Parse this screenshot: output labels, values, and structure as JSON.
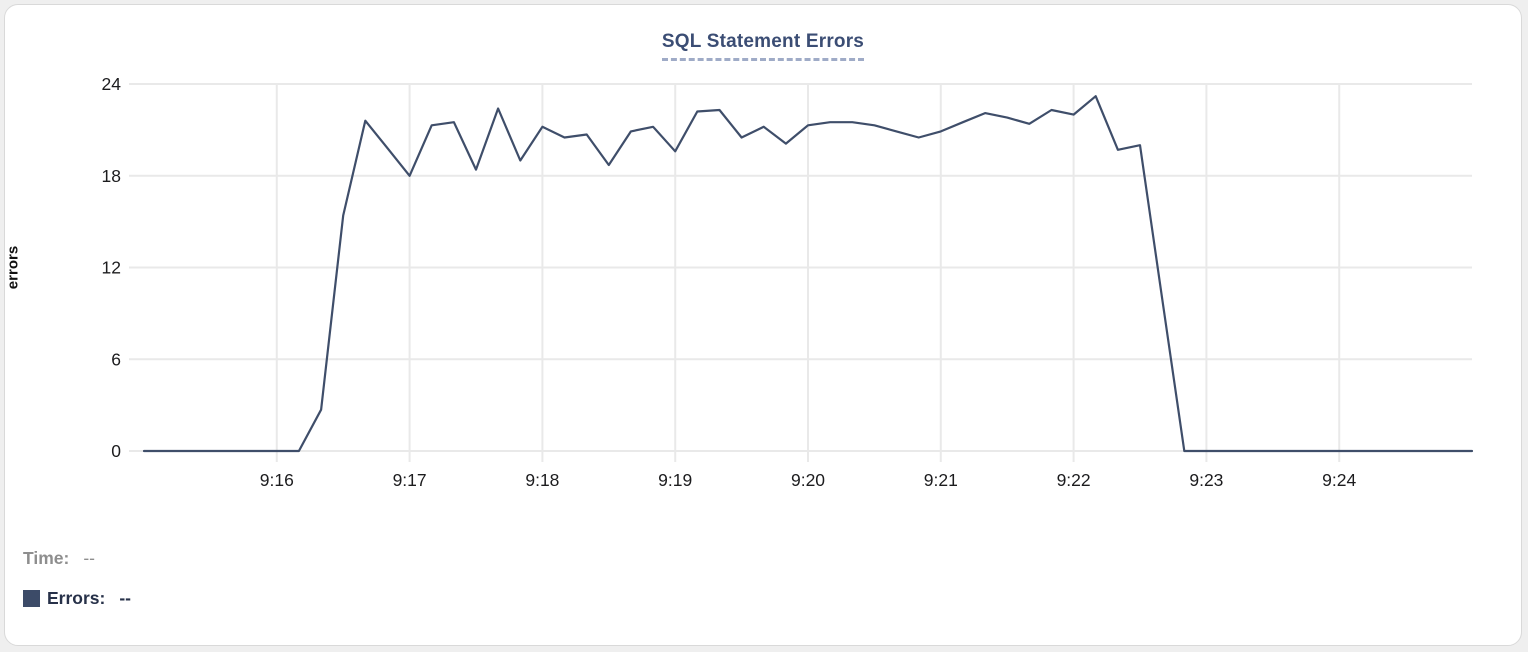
{
  "chart": {
    "title": "SQL Statement Errors",
    "y_axis_label": "errors"
  },
  "tooltip": {
    "time_label": "Time:",
    "time_value": "--",
    "errors_label": "Errors:",
    "errors_value": "--"
  },
  "colors": {
    "series_line": "#3f4e6a",
    "legend_swatch": "#3c4b68",
    "title_text": "#3b4d74",
    "title_dash_underline": "#9fabc7",
    "gridline": "#e9e9e9",
    "axis_tick_text": "#1c1c1e",
    "time_readout_gray": "#8e8e8e",
    "errors_readout_navy": "#273149",
    "card_border": "#d9d9d9"
  },
  "chart_data": {
    "type": "line",
    "title": "SQL Statement Errors",
    "xlabel": "",
    "ylabel": "errors",
    "ylim": [
      0,
      24
    ],
    "y_ticks": [
      0,
      6,
      12,
      18,
      24
    ],
    "x_tick_labels": [
      "9:16",
      "9:17",
      "9:18",
      "9:19",
      "9:20",
      "9:21",
      "9:22",
      "9:23",
      "9:24"
    ],
    "x_ticks_every_n_points": 6,
    "first_x_tick_index": 6,
    "grid": true,
    "legend_position": "bottom-left",
    "series": [
      {
        "name": "Errors",
        "color": "#3f4e6a",
        "x": [
          "9:15:00",
          "9:15:10",
          "9:15:20",
          "9:15:30",
          "9:15:40",
          "9:15:50",
          "9:16:00",
          "9:16:10",
          "9:16:20",
          "9:16:30",
          "9:16:40",
          "9:16:50",
          "9:17:00",
          "9:17:10",
          "9:17:20",
          "9:17:30",
          "9:17:40",
          "9:17:50",
          "9:18:00",
          "9:18:10",
          "9:18:20",
          "9:18:30",
          "9:18:40",
          "9:18:50",
          "9:19:00",
          "9:19:10",
          "9:19:20",
          "9:19:30",
          "9:19:40",
          "9:19:50",
          "9:20:00",
          "9:20:10",
          "9:20:20",
          "9:20:30",
          "9:20:40",
          "9:20:50",
          "9:21:00",
          "9:21:10",
          "9:21:20",
          "9:21:30",
          "9:21:40",
          "9:21:50",
          "9:22:00",
          "9:22:10",
          "9:22:20",
          "9:22:30",
          "9:22:40",
          "9:22:50",
          "9:23:00",
          "9:23:10",
          "9:23:20",
          "9:23:30",
          "9:23:40",
          "9:23:50",
          "9:24:00",
          "9:24:10",
          "9:24:20",
          "9:24:30",
          "9:24:40",
          "9:24:50",
          "9:25:00"
        ],
        "values": [
          0,
          0,
          0,
          0,
          0,
          0,
          0,
          0,
          2.7,
          15.4,
          21.6,
          19.8,
          18,
          21.3,
          21.5,
          18.4,
          22.4,
          19,
          21.2,
          20.5,
          20.7,
          18.7,
          20.9,
          21.2,
          19.6,
          22.2,
          22.3,
          20.5,
          21.2,
          20.1,
          21.3,
          21.5,
          21.5,
          21.3,
          20.9,
          20.5,
          20.9,
          21.5,
          22.1,
          21.8,
          21.4,
          22.3,
          22,
          23.2,
          19.7,
          20,
          10,
          0,
          0,
          0,
          0,
          0,
          0,
          0,
          0,
          0,
          0,
          0,
          0,
          0,
          0
        ]
      }
    ]
  }
}
